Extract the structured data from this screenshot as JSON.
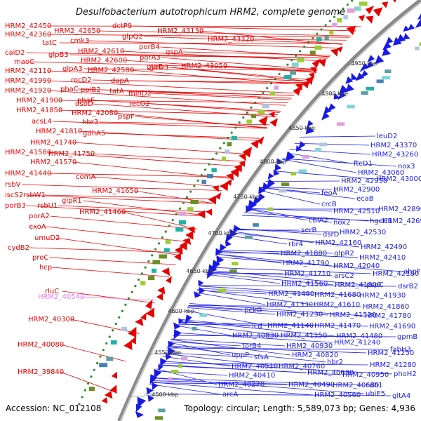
{
  "title": "Desulfobacterium autotrophicum HRM2, complete genome",
  "footer": {
    "accession": "Accession: NC_012108",
    "summary": "Topology: circular; Length: 5,589,073 bp; Genes: 4,936"
  },
  "colors": {
    "forward": "#e60000",
    "reverse": "#1a1ae6",
    "highlight": "#e87ae8",
    "backbone": "#888888",
    "gc_dots": "#2e8b2e"
  },
  "ruler": [
    "4500 kbp",
    "4550 kbp",
    "4600 kbp",
    "4650 kbp",
    "4700 kbp",
    "4750 kbp",
    "4800 kbp",
    "4850 kbp",
    "4900 kbp",
    "4950 kbp"
  ],
  "forward_labels": [
    "HRM2_42450",
    "HRM2_42360",
    "caiD2",
    "maoC",
    "HRM2_42110",
    "HRM2_41990",
    "HRM2_41920",
    "HRM2_41900",
    "HRM2_41850",
    "acsL4",
    "HRM2_41810",
    "HRM2_41740",
    "HRM2_41580",
    "HRM2_41570",
    "HRM2_41440",
    "rsbV",
    "iscS2",
    "porB3",
    "porA2",
    "exoA",
    "umuD2",
    "cydB2",
    "proC",
    "hcp",
    "rluC",
    "HRM2_40300",
    "HRM2_40080",
    "HRM2_39840",
    "tatC",
    "glpB3",
    "HRM2_42650",
    "cmk3",
    "HRM2_42610",
    "HRM2_42600",
    "HRM2_42580",
    "glpA3",
    "rocD2",
    "phaC",
    "ppiB2",
    "phaE",
    "dsbD",
    "HRM2_42080",
    "hbr3",
    "gdhA5",
    "HRM2_41750",
    "comA",
    "HRM2_41650",
    "glpR1",
    "HRM2_41460",
    "rsbW1",
    "rsbU1",
    "dctP9",
    "glpQ2",
    "porB4",
    "porA3",
    "gtaB",
    "dapA",
    "tatA",
    "minD2",
    "recO2",
    "pspF",
    "gltD3",
    "HRM2_43130",
    "HRM2_43320",
    "gspA",
    "HRM2_43050"
  ],
  "highlight_labels": [
    "HRM2_40540"
  ],
  "reverse_labels": [
    "leuD2",
    "HRM2_43370",
    "HRM2_43260",
    "nox3",
    "ftcD1",
    "HRM2_43060",
    "HRM2_42950",
    "HRM2_42900",
    "feoA",
    "HRM2_43000",
    "ecaB",
    "crcB",
    "HRM2_42890",
    "HRM2_42510",
    "HRM2_42690",
    "hgdC1",
    "cbiA2",
    "nox2",
    "serB",
    "HRM2_42530",
    "dsrD",
    "rbr4",
    "HRM2_42160",
    "HRM2_42490",
    "HRM2_41880",
    "glpR2",
    "HRM2_42410",
    "HRM2_41790",
    "HRM2_42040",
    "ahpF",
    "HRM2_41710",
    "arsC2",
    "HRM2_42180",
    "HRM2_41560",
    "HRM2_41800",
    "pspC",
    "dsrB2",
    "HRM2_41490",
    "HRM2_41680",
    "HRM2_41930",
    "HRM2_41330",
    "HRM2_41610",
    "HRM2_41860",
    "pckG",
    "HRM2_41230",
    "HRM2_41520",
    "HRM2_41780",
    "HRM2_41140",
    "HRM2_41470",
    "HRM2_41690",
    "icd",
    "HRM2_40830",
    "HRM2_41150",
    "HRM2_41480",
    "gpmB",
    "torB4",
    "HRM2_40930",
    "HRM2_41240",
    "uppP",
    "HRM2_40820",
    "fabH3",
    "sfsA",
    "HRM2_41250",
    "HRM2_40510",
    "HRM2_40760",
    "hbr2",
    "HRM2_41280",
    "HRM2_40410",
    "HRM2_40630",
    "HRM2_40950",
    "phoH2",
    "HRM2_40270",
    "HRM2_40490",
    "HRM2_40680",
    "cdh1",
    "arcA",
    "HRM2_40560",
    "ubiE5",
    "gltA4"
  ]
}
